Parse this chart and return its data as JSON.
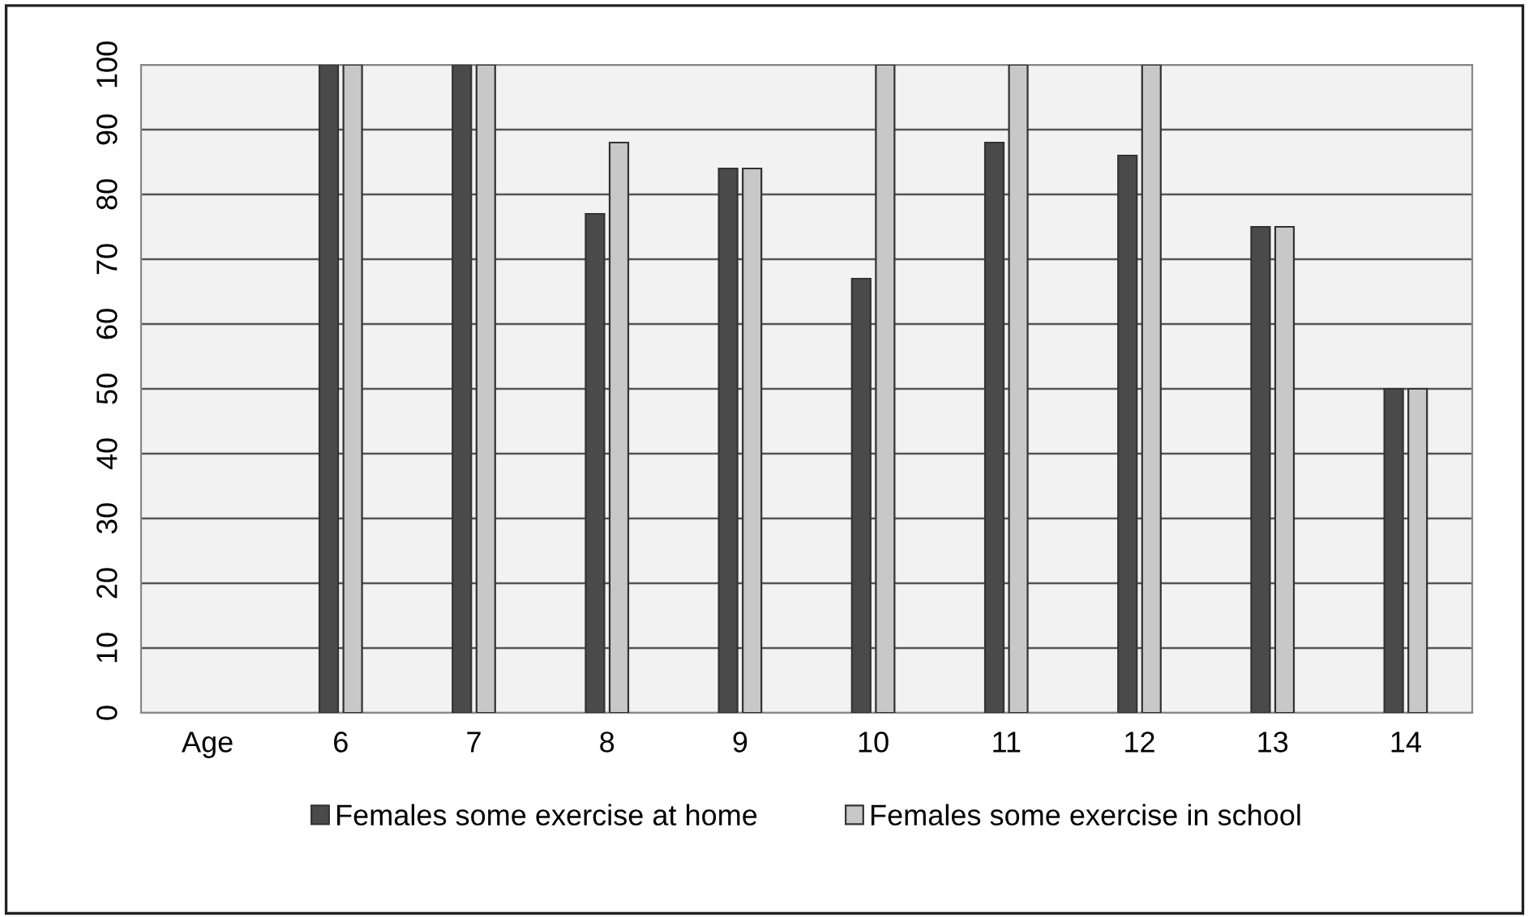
{
  "chart_data": {
    "type": "bar",
    "categories": [
      "Age",
      "6",
      "7",
      "8",
      "9",
      "10",
      "11",
      "12",
      "13",
      "14"
    ],
    "series": [
      {
        "name": "Females some exercise at home",
        "color": "#4a4a4a",
        "values": [
          null,
          100,
          100,
          77,
          84,
          67,
          88,
          86,
          75,
          50
        ]
      },
      {
        "name": "Females some exercise in school",
        "color": "#c8c8c8",
        "values": [
          null,
          100,
          100,
          88,
          84,
          100,
          100,
          100,
          75,
          50
        ]
      }
    ],
    "ylim": [
      0,
      100
    ],
    "yticks": [
      0,
      10,
      20,
      30,
      40,
      50,
      60,
      70,
      80,
      90,
      100
    ],
    "grid": "y",
    "legend": "bottom"
  }
}
